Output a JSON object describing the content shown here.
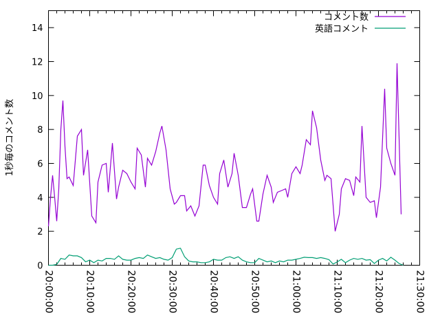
{
  "chart_data": {
    "type": "line",
    "title": "",
    "xlabel": "",
    "ylabel": "1秒毎のコメント数",
    "xlim": [
      "20:00:00",
      "21:30:00"
    ],
    "ylim": [
      0,
      15
    ],
    "x_ticks": [
      "20:00:00",
      "20:10:00",
      "20:20:00",
      "20:30:00",
      "20:40:00",
      "20:50:00",
      "21:00:00",
      "21:10:00",
      "21:20:00",
      "21:30:00"
    ],
    "y_ticks": [
      "0",
      "2",
      "4",
      "6",
      "8",
      "10",
      "12",
      "14"
    ],
    "grid": false,
    "legend_position": "top-right",
    "series": [
      {
        "name": "コメント数",
        "color": "#9400d3",
        "x": [
          "20:00:00",
          "20:00:30",
          "20:01:00",
          "20:01:30",
          "20:02:00",
          "20:02:30",
          "20:03:00",
          "20:03:30",
          "20:04:00",
          "20:04:30",
          "20:05:00",
          "20:06:00",
          "20:07:00",
          "20:08:00",
          "20:08:30",
          "20:09:30",
          "20:10:30",
          "20:11:30",
          "20:12:00",
          "20:13:00",
          "20:14:00",
          "20:14:30",
          "20:15:30",
          "20:16:30",
          "20:17:00",
          "20:18:00",
          "20:19:00",
          "20:20:00",
          "20:21:00",
          "20:21:30",
          "20:22:30",
          "20:23:30",
          "20:24:00",
          "20:25:00",
          "20:26:00",
          "20:27:00",
          "20:27:30",
          "20:28:30",
          "20:29:30",
          "20:30:30",
          "20:31:00",
          "20:32:00",
          "20:33:00",
          "20:33:30",
          "20:34:30",
          "20:35:30",
          "20:36:30",
          "20:37:30",
          "20:38:00",
          "20:39:00",
          "20:40:00",
          "20:41:00",
          "20:41:30",
          "20:42:30",
          "20:43:30",
          "20:44:30",
          "20:45:00",
          "20:46:00",
          "20:47:00",
          "20:48:00",
          "20:49:00",
          "20:49:30",
          "20:50:30",
          "20:51:00",
          "20:52:00",
          "20:53:00",
          "20:54:00",
          "20:54:30",
          "20:55:30",
          "20:56:30",
          "20:57:30",
          "20:58:00",
          "20:59:00",
          "21:00:00",
          "21:01:00",
          "21:01:30",
          "21:02:30",
          "21:03:30",
          "21:04:00",
          "21:05:00",
          "21:06:00",
          "21:07:00",
          "21:07:30",
          "21:08:30",
          "21:09:30",
          "21:10:30",
          "21:11:00",
          "21:12:00",
          "21:13:00",
          "21:14:00",
          "21:14:30",
          "21:15:30",
          "21:16:00",
          "21:17:00",
          "21:18:00",
          "21:19:00",
          "21:19:30",
          "21:20:30",
          "21:21:30",
          "21:22:00",
          "21:23:00",
          "21:24:00",
          "21:24:30",
          "21:25:00",
          "21:25:30"
        ],
        "y": [
          2.3,
          4.0,
          5.3,
          4.0,
          2.6,
          4.5,
          8.0,
          9.7,
          7.0,
          5.1,
          5.2,
          4.7,
          7.6,
          8.0,
          5.3,
          6.8,
          2.9,
          2.5,
          4.9,
          5.9,
          6.0,
          4.3,
          7.2,
          3.9,
          4.6,
          5.6,
          5.4,
          4.9,
          4.5,
          6.9,
          6.5,
          4.6,
          6.3,
          5.9,
          6.7,
          7.8,
          8.2,
          6.8,
          4.5,
          3.6,
          3.7,
          4.1,
          4.1,
          3.2,
          3.5,
          2.9,
          3.5,
          5.9,
          5.9,
          4.7,
          4.0,
          3.6,
          5.4,
          6.2,
          4.6,
          5.4,
          6.6,
          5.3,
          3.4,
          3.4,
          4.2,
          4.5,
          2.6,
          2.6,
          4.2,
          5.3,
          4.6,
          3.7,
          4.3,
          4.4,
          4.5,
          4.0,
          5.4,
          5.8,
          5.4,
          5.9,
          7.4,
          7.1,
          9.1,
          8.1,
          6.2,
          5.0,
          5.3,
          5.1,
          2.0,
          3.0,
          4.5,
          5.1,
          5.0,
          4.1,
          5.2,
          4.9,
          8.2,
          4.0,
          3.7,
          3.8,
          2.8,
          4.6,
          10.4,
          6.9,
          6.0,
          5.3,
          11.9,
          7.5,
          3.0
        ]
      },
      {
        "name": "英語コメント",
        "color": "#009e73",
        "x": [
          "20:00:00",
          "20:01:00",
          "20:02:00",
          "20:03:00",
          "20:04:00",
          "20:05:00",
          "20:06:00",
          "20:07:00",
          "20:08:00",
          "20:09:00",
          "20:10:00",
          "20:11:00",
          "20:12:00",
          "20:13:00",
          "20:14:00",
          "20:15:00",
          "20:16:00",
          "20:17:00",
          "20:18:00",
          "20:19:00",
          "20:20:00",
          "20:21:00",
          "20:22:00",
          "20:23:00",
          "20:24:00",
          "20:25:00",
          "20:26:00",
          "20:27:00",
          "20:28:00",
          "20:29:00",
          "20:30:00",
          "20:31:00",
          "20:32:00",
          "20:33:00",
          "20:34:00",
          "20:35:00",
          "20:36:00",
          "20:37:00",
          "20:38:00",
          "20:39:00",
          "20:40:00",
          "20:41:00",
          "20:42:00",
          "20:43:00",
          "20:44:00",
          "20:45:00",
          "20:46:00",
          "20:47:00",
          "20:48:00",
          "20:49:00",
          "20:50:00",
          "20:51:00",
          "20:52:00",
          "20:53:00",
          "20:54:00",
          "20:55:00",
          "20:56:00",
          "20:57:00",
          "20:58:00",
          "20:59:00",
          "21:00:00",
          "21:01:00",
          "21:02:00",
          "21:03:00",
          "21:04:00",
          "21:05:00",
          "21:06:00",
          "21:07:00",
          "21:08:00",
          "21:09:00",
          "21:10:00",
          "21:11:00",
          "21:12:00",
          "21:13:00",
          "21:14:00",
          "21:15:00",
          "21:16:00",
          "21:17:00",
          "21:18:00",
          "21:19:00",
          "21:20:00",
          "21:21:00",
          "21:22:00",
          "21:23:00",
          "21:24:00",
          "21:25:00",
          "21:26:00"
        ],
        "y": [
          0,
          0,
          0.05,
          0.4,
          0.35,
          0.6,
          0.55,
          0.55,
          0.45,
          0.2,
          0.3,
          0.15,
          0.3,
          0.25,
          0.4,
          0.4,
          0.35,
          0.55,
          0.35,
          0.3,
          0.3,
          0.4,
          0.45,
          0.4,
          0.6,
          0.5,
          0.4,
          0.45,
          0.35,
          0.3,
          0.45,
          0.95,
          1.0,
          0.5,
          0.25,
          0.2,
          0.2,
          0.15,
          0.15,
          0.2,
          0.35,
          0.3,
          0.3,
          0.45,
          0.5,
          0.4,
          0.5,
          0.3,
          0.2,
          0.15,
          0.15,
          0.4,
          0.3,
          0.2,
          0.25,
          0.15,
          0.25,
          0.2,
          0.3,
          0.3,
          0.35,
          0.4,
          0.47,
          0.45,
          0.45,
          0.4,
          0.45,
          0.4,
          0.33,
          0.07,
          0.2,
          0.35,
          0.15,
          0.3,
          0.4,
          0.35,
          0.4,
          0.3,
          0.33,
          0.1,
          0.3,
          0.4,
          0.25,
          0.47,
          0.3,
          0.1,
          0
        ]
      }
    ]
  }
}
